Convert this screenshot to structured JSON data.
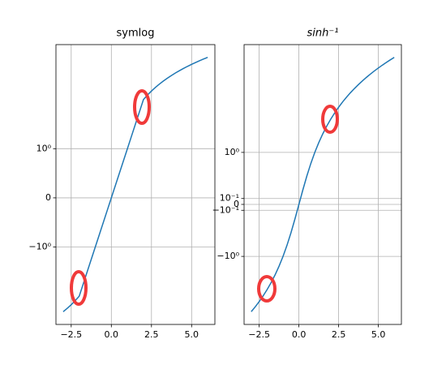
{
  "chart_data": [
    {
      "type": "line",
      "title": "symlog",
      "yscale": "symlog",
      "linthresh": 2,
      "color": "#1f77b4",
      "grid": true,
      "x": [
        -3,
        -2.75,
        -2.5,
        -2.25,
        -2,
        -1.75,
        -1.5,
        -1.25,
        -1,
        -0.75,
        -0.5,
        -0.25,
        0,
        0.25,
        0.5,
        0.75,
        1,
        1.25,
        1.5,
        1.75,
        2,
        2.25,
        2.5,
        2.75,
        3,
        3.25,
        3.5,
        3.75,
        4,
        4.25,
        4.5,
        4.75,
        5,
        5.25,
        5.5,
        5.75,
        6
      ],
      "values": [
        -3,
        -2.75,
        -2.5,
        -2.25,
        -2,
        -1.75,
        -1.5,
        -1.25,
        -1,
        -0.75,
        -0.5,
        -0.25,
        0,
        0.25,
        0.5,
        0.75,
        1,
        1.25,
        1.5,
        1.75,
        2,
        2.25,
        2.5,
        2.75,
        3,
        3.25,
        3.5,
        3.75,
        4,
        4.25,
        4.5,
        4.75,
        5,
        5.25,
        5.5,
        5.75,
        6
      ],
      "xlim": [
        -3.45,
        6.45
      ],
      "xticks": [
        {
          "value": -2.5,
          "label": "−2.5"
        },
        {
          "value": 0,
          "label": "0.0"
        },
        2.5,
        {
          "value": 5,
          "label": "5.0"
        }
      ],
      "ylim": [
        -4.18,
        8.36
      ],
      "yticks": [
        {
          "value": -1,
          "label": "−10⁰"
        },
        0,
        {
          "value": 1,
          "label": "10⁰"
        }
      ]
    },
    {
      "type": "line",
      "title": "sinh⁻¹",
      "yscale": "asinh",
      "color": "#1f77b4",
      "grid": true,
      "x": [
        -3,
        -2.75,
        -2.5,
        -2.25,
        -2,
        -1.75,
        -1.5,
        -1.25,
        -1,
        -0.75,
        -0.5,
        -0.25,
        0,
        0.25,
        0.5,
        0.75,
        1,
        1.25,
        1.5,
        1.75,
        2,
        2.25,
        2.5,
        2.75,
        3,
        3.25,
        3.5,
        3.75,
        4,
        4.25,
        4.5,
        4.75,
        5,
        5.25,
        5.5,
        5.75,
        6
      ],
      "values": [
        -3,
        -2.75,
        -2.5,
        -2.25,
        -2,
        -1.75,
        -1.5,
        -1.25,
        -1,
        -0.75,
        -0.5,
        -0.25,
        0,
        0.25,
        0.5,
        0.75,
        1,
        1.25,
        1.5,
        1.75,
        2,
        2.25,
        2.5,
        2.75,
        3,
        3.25,
        3.5,
        3.75,
        4,
        4.25,
        4.5,
        4.75,
        5,
        5.25,
        5.5,
        5.75,
        6
      ],
      "xlim": [
        -3.45,
        6.45
      ],
      "xticks": [
        {
          "value": -2.5,
          "label": "−2.5"
        },
        {
          "value": 0,
          "label": "0.0"
        },
        2.5,
        {
          "value": 5,
          "label": "5.0"
        }
      ],
      "ylim": [
        -3.76,
        7.47
      ],
      "yticks": [
        {
          "value": -1,
          "label": "−10⁰"
        },
        {
          "value": -0.1,
          "label": "−10⁻¹"
        },
        0,
        {
          "value": 0.1,
          "label": "10⁻¹"
        },
        {
          "value": 1,
          "label": "10⁰"
        }
      ]
    }
  ]
}
